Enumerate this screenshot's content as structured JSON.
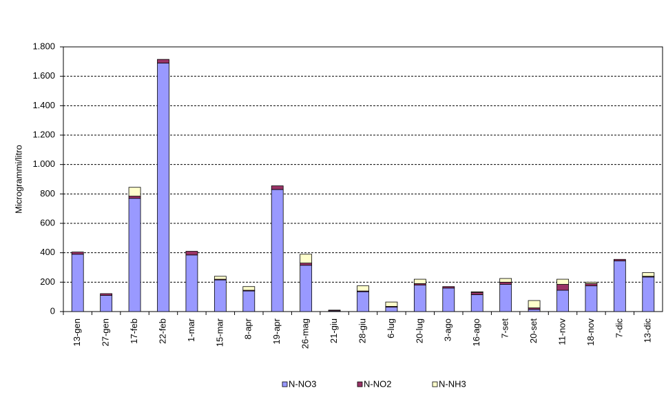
{
  "chart_data": {
    "type": "stacked-bar",
    "y_label": "Microgrammi/litro",
    "categories": [
      "13-gen",
      "27-gen",
      "17-feb",
      "22-feb",
      "1-mar",
      "15-mar",
      "8-apr",
      "19-apr",
      "26-mag",
      "21-giu",
      "28-giu",
      "6-lug",
      "20-lug",
      "3-ago",
      "16-ago",
      "7-set",
      "20-set",
      "11-nov",
      "18-nov",
      "7-dic",
      "13-dic"
    ],
    "series": [
      {
        "name": "N-NO3",
        "color": "#9999ff",
        "values": [
          390,
          110,
          770,
          1690,
          385,
          215,
          140,
          830,
          315,
          5,
          135,
          30,
          180,
          160,
          115,
          185,
          15,
          145,
          175,
          345,
          235
        ]
      },
      {
        "name": "N-NO2",
        "color": "#993366",
        "values": [
          15,
          12,
          15,
          25,
          25,
          5,
          5,
          25,
          15,
          5,
          5,
          5,
          10,
          10,
          15,
          15,
          10,
          40,
          15,
          10,
          5
        ]
      },
      {
        "name": "N-NH3",
        "color": "#ffffcc",
        "values": [
          0,
          0,
          60,
          0,
          0,
          20,
          25,
          0,
          60,
          0,
          35,
          30,
          30,
          0,
          5,
          25,
          50,
          35,
          10,
          0,
          25
        ]
      }
    ],
    "ylim": [
      0,
      1800
    ],
    "yticks": [
      0,
      200,
      400,
      600,
      800,
      {
        "value": 1000,
        "label": "1.000"
      },
      {
        "value": 1200,
        "label": "1.200"
      },
      {
        "value": 1400,
        "label": "1.400"
      },
      {
        "value": 1600,
        "label": "1.600"
      },
      {
        "value": 1800,
        "label": "1.800"
      }
    ],
    "grid": true,
    "legend": "bottom"
  }
}
